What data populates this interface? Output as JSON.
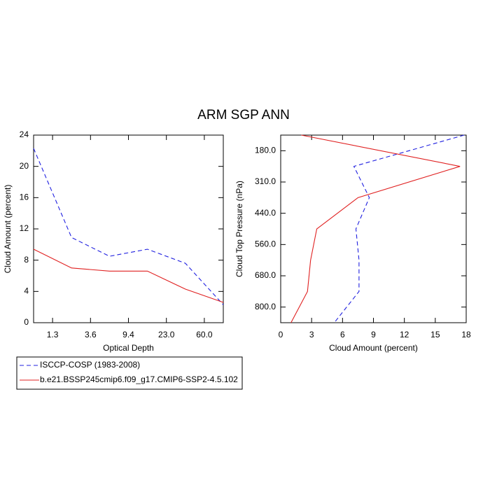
{
  "title": "ARM SGP ANN",
  "chart_data": [
    {
      "type": "line",
      "orientation": "vertical",
      "xlabel": "Optical Depth",
      "ylabel": "Cloud Amount (percent)",
      "x": [
        0,
        1,
        2,
        3,
        4,
        5
      ],
      "xlim": [
        0,
        5
      ],
      "xticks": [
        {
          "value": 0.5,
          "label": "1.3"
        },
        {
          "value": 1.5,
          "label": "3.6"
        },
        {
          "value": 2.5,
          "label": "9.4"
        },
        {
          "value": 3.5,
          "label": "23.0"
        },
        {
          "value": 4.5,
          "label": "60.0"
        }
      ],
      "ylim": [
        0,
        24
      ],
      "yticks": [
        0,
        4,
        8,
        12,
        16,
        20,
        24
      ],
      "series": [
        {
          "name": "ISCCP-COSP (1983-2008)",
          "color": "#2020e0",
          "dashed": true,
          "values": [
            22.3,
            10.9,
            8.5,
            9.4,
            7.6,
            2.3
          ]
        },
        {
          "name": "b.e21.BSSP245cmip6.f09_g17.CMIP6-SSP2-4.5.102",
          "color": "#e02020",
          "dashed": false,
          "values": [
            9.4,
            7.0,
            6.6,
            6.6,
            4.3,
            2.6
          ]
        }
      ]
    },
    {
      "type": "line",
      "orientation": "horizontal",
      "xlabel": "Cloud Amount (percent)",
      "ylabel": "Cloud Top Pressure (nPa)",
      "y": [
        0,
        1,
        2,
        3,
        4,
        5,
        6
      ],
      "ylim": [
        0,
        6
      ],
      "y_reversed": true,
      "yticks": [
        {
          "value": 0.5,
          "label": "180.0"
        },
        {
          "value": 1.5,
          "label": "310.0"
        },
        {
          "value": 2.5,
          "label": "440.0"
        },
        {
          "value": 3.5,
          "label": "560.0"
        },
        {
          "value": 4.5,
          "label": "680.0"
        },
        {
          "value": 5.5,
          "label": "800.0"
        }
      ],
      "xlim": [
        0,
        18
      ],
      "xticks": [
        0,
        3,
        6,
        9,
        12,
        15,
        18
      ],
      "series": [
        {
          "name": "ISCCP-COSP (1983-2008)",
          "color": "#2020e0",
          "dashed": true,
          "values": [
            17.8,
            7.1,
            8.6,
            7.3,
            7.6,
            7.6,
            5.2
          ]
        },
        {
          "name": "b.e21.BSSP245cmip6.f09_g17.CMIP6-SSP2-4.5.102",
          "color": "#e02020",
          "dashed": false,
          "values": [
            2.0,
            17.4,
            7.5,
            3.5,
            2.9,
            2.6,
            1.0
          ]
        }
      ]
    }
  ]
}
